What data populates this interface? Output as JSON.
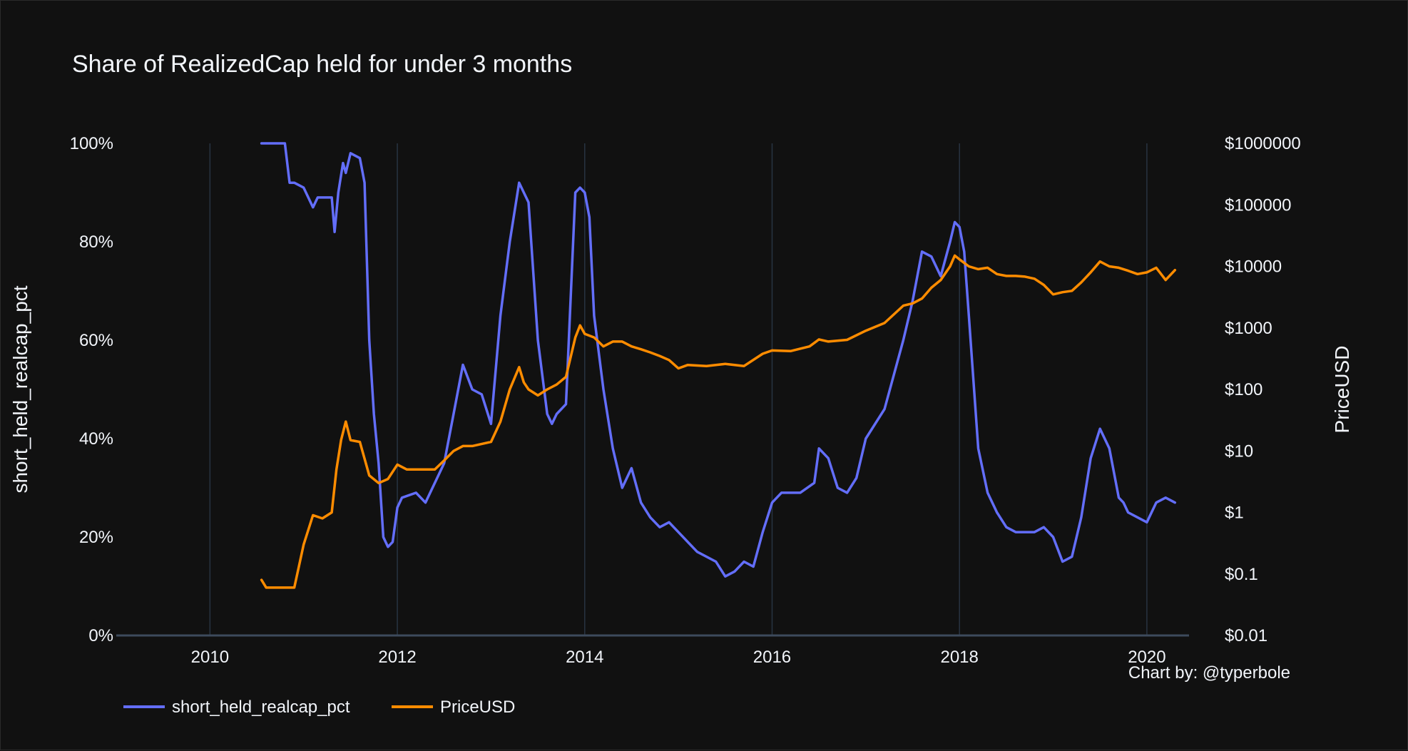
{
  "chart_data": {
    "type": "line",
    "title": "Share of RealizedCap held for under 3 months",
    "xlabel": "",
    "ylabel": "short_held_realcap_pct",
    "y2label": "PriceUSD",
    "credit": "Chart by: @typerbole",
    "x_range": [
      2009.0,
      2020.45
    ],
    "x_ticks": [
      2010,
      2012,
      2014,
      2016,
      2018,
      2020
    ],
    "x_tick_labels": [
      "2010",
      "2012",
      "2014",
      "2016",
      "2018",
      "2020"
    ],
    "ylim": [
      0,
      100
    ],
    "y_ticks": [
      0,
      20,
      40,
      60,
      80,
      100
    ],
    "y_tick_labels": [
      "0%",
      "20%",
      "40%",
      "60%",
      "80%",
      "100%"
    ],
    "y2_scale": "log",
    "y2lim": [
      0.01,
      1000000
    ],
    "y2_ticks": [
      0.01,
      0.1,
      1,
      10,
      100,
      1000,
      10000,
      100000,
      1000000
    ],
    "y2_tick_labels": [
      "$0.01",
      "$0.1",
      "$1",
      "$10",
      "$100",
      "$1000",
      "$10000",
      "$100000",
      "$1000000"
    ],
    "grid": "vertical",
    "legend_position": "bottom-left",
    "background": "#111111",
    "series": [
      {
        "name": "short_held_realcap_pct",
        "axis": "y",
        "color": "#636efa",
        "x": [
          2010.55,
          2010.8,
          2010.85,
          2010.9,
          2011.0,
          2011.1,
          2011.15,
          2011.2,
          2011.3,
          2011.33,
          2011.37,
          2011.42,
          2011.45,
          2011.5,
          2011.6,
          2011.65,
          2011.7,
          2011.75,
          2011.8,
          2011.85,
          2011.9,
          2011.95,
          2012.0,
          2012.05,
          2012.2,
          2012.3,
          2012.5,
          2012.6,
          2012.7,
          2012.8,
          2012.9,
          2013.0,
          2013.1,
          2013.2,
          2013.3,
          2013.4,
          2013.5,
          2013.6,
          2013.65,
          2013.7,
          2013.8,
          2013.9,
          2013.95,
          2014.0,
          2014.05,
          2014.1,
          2014.2,
          2014.3,
          2014.4,
          2014.5,
          2014.6,
          2014.7,
          2014.8,
          2014.9,
          2015.0,
          2015.2,
          2015.4,
          2015.5,
          2015.6,
          2015.7,
          2015.8,
          2015.9,
          2016.0,
          2016.1,
          2016.3,
          2016.45,
          2016.5,
          2016.6,
          2016.7,
          2016.8,
          2016.9,
          2017.0,
          2017.2,
          2017.4,
          2017.5,
          2017.6,
          2017.7,
          2017.8,
          2017.9,
          2017.95,
          2018.0,
          2018.05,
          2018.1,
          2018.2,
          2018.3,
          2018.4,
          2018.5,
          2018.6,
          2018.8,
          2018.9,
          2019.0,
          2019.1,
          2019.2,
          2019.3,
          2019.4,
          2019.5,
          2019.6,
          2019.7,
          2019.75,
          2019.8,
          2019.9,
          2020.0,
          2020.1,
          2020.2,
          2020.3
        ],
        "y": [
          100,
          100,
          92,
          92,
          91,
          87,
          89,
          89,
          89,
          82,
          90,
          96,
          94,
          98,
          97,
          92,
          60,
          45,
          35,
          20,
          18,
          19,
          26,
          28,
          29,
          27,
          35,
          45,
          55,
          50,
          49,
          43,
          65,
          80,
          92,
          88,
          60,
          45,
          43,
          45,
          47,
          90,
          91,
          90,
          85,
          65,
          50,
          38,
          30,
          34,
          27,
          24,
          22,
          23,
          21,
          17,
          15,
          12,
          13,
          15,
          14,
          21,
          27,
          29,
          29,
          31,
          38,
          36,
          30,
          29,
          32,
          40,
          46,
          60,
          68,
          78,
          77,
          73,
          80,
          84,
          83,
          78,
          65,
          38,
          29,
          25,
          22,
          21,
          21,
          22,
          20,
          15,
          16,
          24,
          36,
          42,
          38,
          28,
          27,
          25,
          24,
          23,
          27,
          28,
          27
        ]
      },
      {
        "name": "PriceUSD",
        "axis": "y2",
        "color": "#ff8c00",
        "x": [
          2010.55,
          2010.6,
          2010.8,
          2010.9,
          2011.0,
          2011.1,
          2011.2,
          2011.3,
          2011.35,
          2011.4,
          2011.45,
          2011.5,
          2011.6,
          2011.7,
          2011.8,
          2011.9,
          2012.0,
          2012.1,
          2012.2,
          2012.4,
          2012.5,
          2012.6,
          2012.7,
          2012.8,
          2013.0,
          2013.1,
          2013.2,
          2013.3,
          2013.35,
          2013.4,
          2013.5,
          2013.6,
          2013.7,
          2013.8,
          2013.9,
          2013.95,
          2014.0,
          2014.1,
          2014.2,
          2014.3,
          2014.4,
          2014.5,
          2014.6,
          2014.7,
          2014.8,
          2014.9,
          2015.0,
          2015.1,
          2015.3,
          2015.5,
          2015.7,
          2015.9,
          2016.0,
          2016.2,
          2016.4,
          2016.5,
          2016.6,
          2016.8,
          2017.0,
          2017.2,
          2017.4,
          2017.5,
          2017.6,
          2017.7,
          2017.8,
          2017.9,
          2017.95,
          2018.0,
          2018.1,
          2018.2,
          2018.3,
          2018.4,
          2018.5,
          2018.6,
          2018.7,
          2018.8,
          2018.9,
          2019.0,
          2019.1,
          2019.2,
          2019.3,
          2019.4,
          2019.5,
          2019.6,
          2019.7,
          2019.8,
          2019.9,
          2020.0,
          2020.1,
          2020.2,
          2020.3
        ],
        "y": [
          0.08,
          0.06,
          0.06,
          0.06,
          0.3,
          0.9,
          0.8,
          1,
          5,
          15,
          30,
          15,
          14,
          4,
          3,
          3.5,
          6,
          5,
          5,
          5,
          7,
          10,
          12,
          12,
          14,
          30,
          100,
          230,
          130,
          100,
          80,
          100,
          120,
          160,
          700,
          1100,
          800,
          700,
          500,
          600,
          600,
          500,
          450,
          400,
          350,
          300,
          220,
          250,
          240,
          260,
          240,
          380,
          430,
          420,
          500,
          650,
          600,
          640,
          900,
          1200,
          2300,
          2500,
          3000,
          4500,
          6000,
          10000,
          15000,
          13000,
          10000,
          9000,
          9500,
          7500,
          7000,
          7000,
          6800,
          6300,
          5000,
          3500,
          3800,
          4000,
          5500,
          8000,
          12000,
          10000,
          9500,
          8500,
          7500,
          8000,
          9500,
          6000,
          8700
        ]
      }
    ]
  }
}
